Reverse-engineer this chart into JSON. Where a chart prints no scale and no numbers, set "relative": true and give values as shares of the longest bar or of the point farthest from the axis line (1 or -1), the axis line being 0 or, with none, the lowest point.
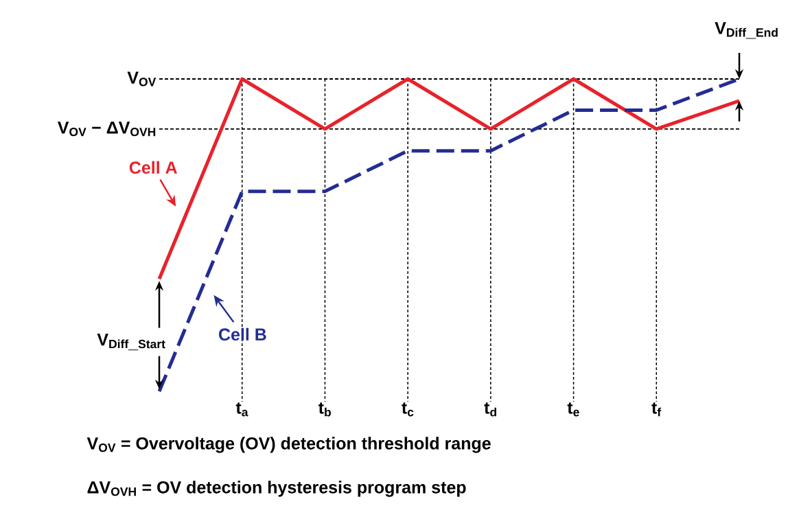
{
  "chart_data": {
    "type": "line",
    "relative": true,
    "grid": "x",
    "categories": [
      null,
      "t$_{a}$",
      "t$_{b}$",
      "t$_{c}$",
      "t$_{d}$",
      "t$_{e}$",
      "t$_{f}$",
      null
    ],
    "series": [
      {
        "name": "Cell A",
        "color": "#e8222b",
        "line_style": "solid",
        "values": [
          0.36,
          1,
          0.84,
          1,
          0.84,
          1,
          0.84,
          0.93
        ]
      },
      {
        "name": "Cell B",
        "color": "#242c94",
        "line_style": "dashed",
        "values": [
          0,
          0.64,
          0.64,
          0.77,
          0.77,
          0.9,
          0.9,
          1
        ]
      }
    ],
    "ref_lines": [
      {
        "axis": "y",
        "value": 1,
        "label": "V$_{OV}$",
        "color": "#000000",
        "line_style": "dotted"
      },
      {
        "axis": "y",
        "value": 0.84,
        "label": "V$_{OV}$ − ΔV$_{OVH}$",
        "color": "#000000",
        "line_style": "dotted"
      }
    ],
    "annotations": [
      "\\mathbf{V_{Diff\\_Start}}",
      "\\mathbf{V_{Diff\\_End}}",
      "V$_{OV}$ = Overvoltage (OV) detection threshold range",
      "ΔV$_{OVH}$ = OV detection hysteresis program step"
    ]
  }
}
